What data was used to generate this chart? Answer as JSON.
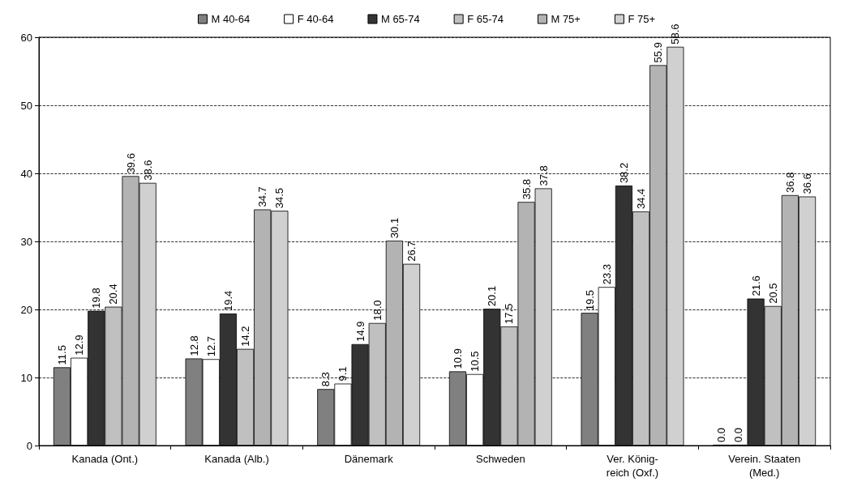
{
  "chart_data": {
    "type": "bar",
    "categories": [
      "Kanada (Ont.)",
      "Kanada (Alb.)",
      "Dänemark",
      "Schweden",
      "Ver. König-\nreich (Oxf.)",
      "Verein. Staaten\n(Med.)"
    ],
    "series": [
      {
        "name": "M 40-64",
        "color": "#808080",
        "values": [
          11.5,
          12.8,
          8.3,
          10.9,
          19.5,
          0.0
        ],
        "value_labels": [
          "11.5",
          "12.8",
          "8.3",
          "10.9",
          "19.5",
          "0.0"
        ]
      },
      {
        "name": "F 40-64",
        "color": "#ffffff",
        "values": [
          12.9,
          12.7,
          9.1,
          10.5,
          23.3,
          0.0
        ],
        "value_labels": [
          "12.9",
          "12.7",
          "9.1",
          "10.5",
          "23.3",
          "0.0"
        ]
      },
      {
        "name": "M 65-74",
        "color": "#333333",
        "values": [
          19.8,
          19.4,
          14.9,
          20.1,
          38.2,
          21.6
        ],
        "value_labels": [
          "19.8",
          "19.4",
          "14.9",
          "20.1",
          "38.2",
          "21.6"
        ]
      },
      {
        "name": "F 65-74",
        "color": "#c0c0c0",
        "values": [
          20.4,
          14.2,
          18.0,
          17.5,
          34.4,
          20.5
        ],
        "value_labels": [
          "20.4",
          "14.2",
          "18.0",
          "17.5",
          "34.4",
          "20.5"
        ]
      },
      {
        "name": "M 75+",
        "color": "#b3b3b3",
        "values": [
          39.6,
          34.7,
          30.1,
          35.8,
          55.9,
          36.8
        ],
        "value_labels": [
          "39.6",
          "34.7",
          "30.1",
          "35.8",
          "55.9",
          "36.8"
        ]
      },
      {
        "name": "F 75+",
        "color": "#d0d0d0",
        "values": [
          38.6,
          34.5,
          26.7,
          37.8,
          58.6,
          36.6
        ],
        "value_labels": [
          "38.6",
          "34.5",
          "26.7",
          "37.8",
          "58.6",
          "36.6"
        ]
      }
    ],
    "ylim": [
      0,
      60
    ],
    "yticks": [
      0,
      10,
      20,
      30,
      40,
      50,
      60
    ],
    "grid": "y",
    "legend": "top"
  }
}
